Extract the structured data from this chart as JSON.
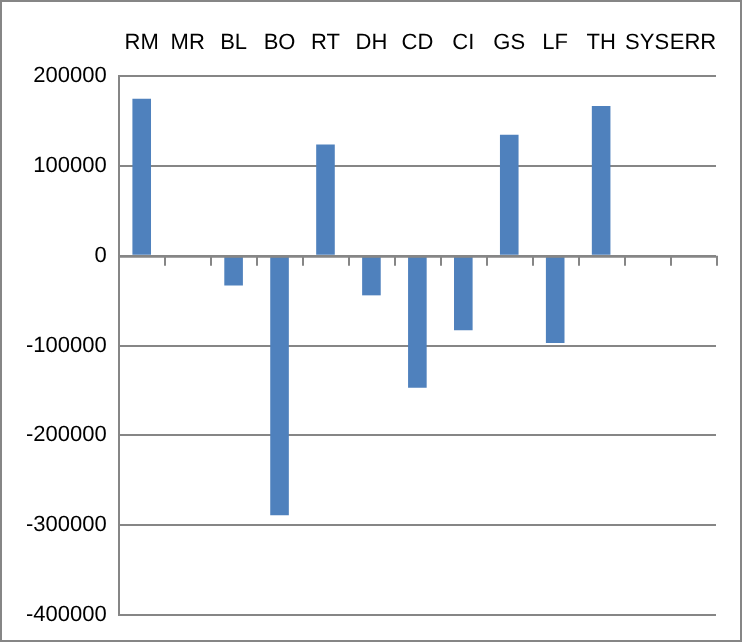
{
  "chart_data": {
    "type": "bar",
    "categories": [
      "RM",
      "MR",
      "BL",
      "BO",
      "RT",
      "DH",
      "CD",
      "CI",
      "GS",
      "LF",
      "TH",
      "SYS",
      "ERR"
    ],
    "values": [
      175000,
      0,
      -33000,
      -289000,
      124000,
      -44000,
      -147000,
      -83000,
      135000,
      -97000,
      167000,
      0,
      0
    ],
    "color": "#4f81bd",
    "ylim": [
      -400000,
      200000
    ],
    "yticks": [
      -400000,
      -300000,
      -200000,
      -100000,
      0,
      100000,
      200000
    ],
    "grid": "y",
    "legend": false
  }
}
